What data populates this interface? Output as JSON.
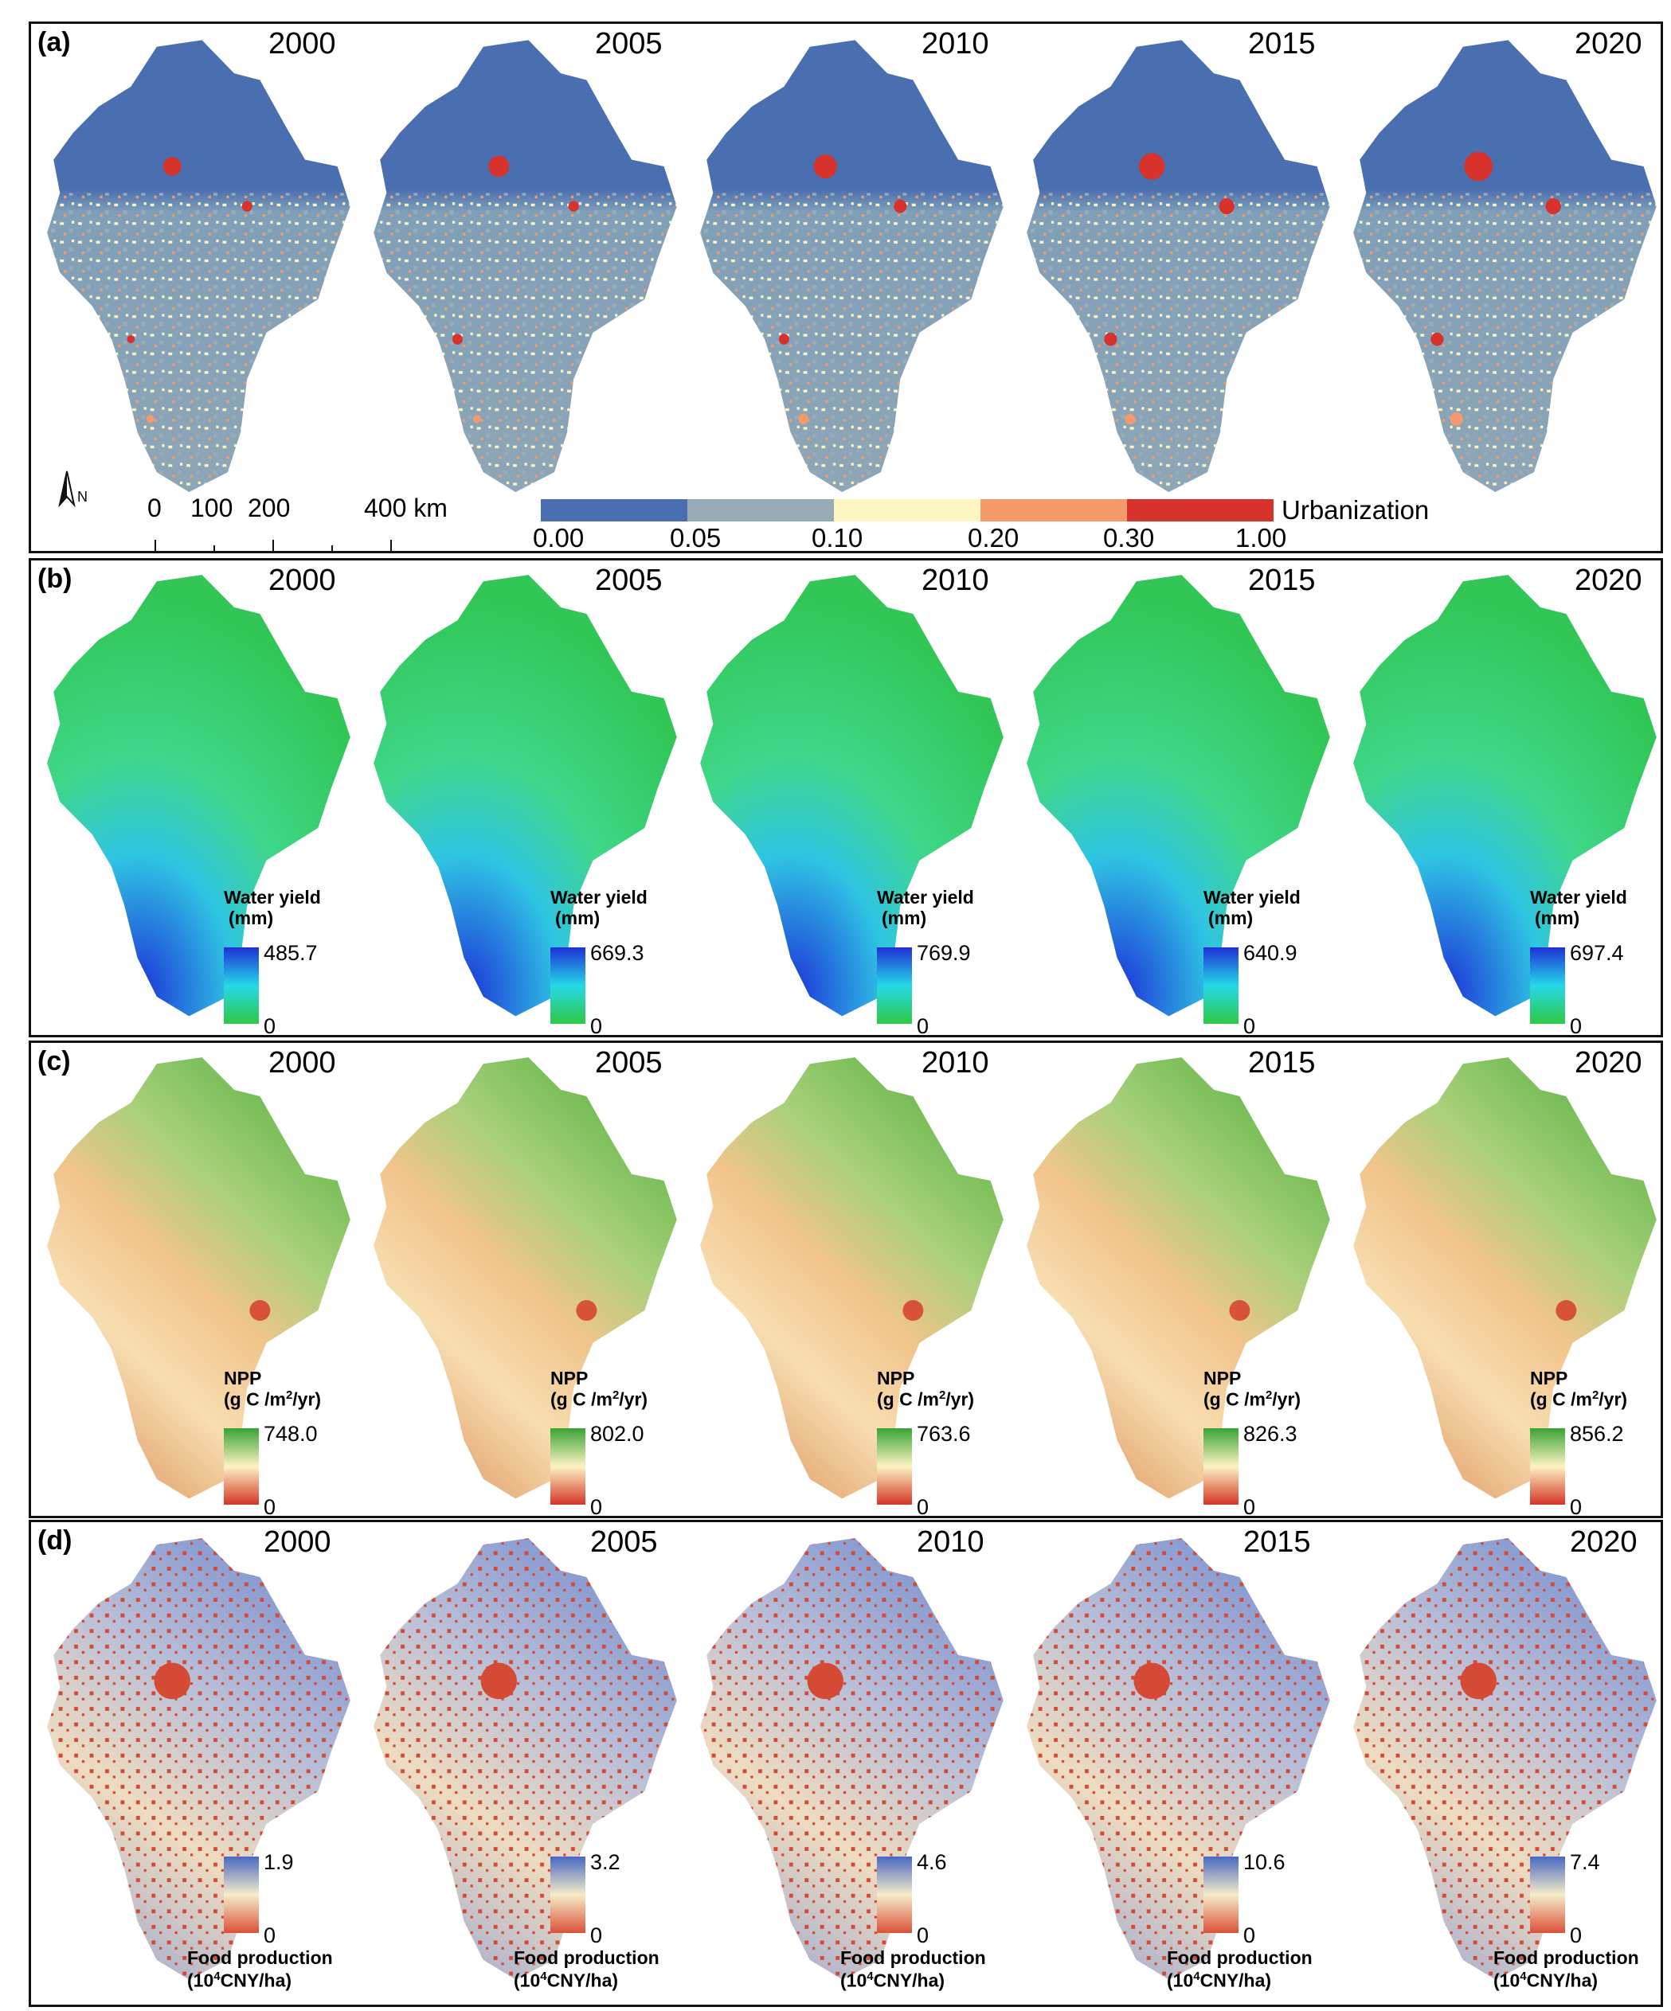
{
  "years": [
    "2000",
    "2005",
    "2010",
    "2015",
    "2020"
  ],
  "panels": {
    "a": {
      "label": "(a)",
      "legend_title": "Urbanization",
      "breaks": [
        "0.00",
        "0.05",
        "0.10",
        "0.20",
        "0.30",
        "1.00"
      ],
      "class_colors": [
        "#4a6fb0",
        "#9aabb8",
        "#fdf6c3",
        "#f59a6b",
        "#d7322b"
      ],
      "north_label": "N",
      "scale_labels": [
        "0",
        "100",
        "200",
        "400 km"
      ]
    },
    "b": {
      "label": "(b)",
      "legend_title_1": "Water yield",
      "legend_title_2": "(mm)",
      "max_values": [
        "485.7",
        "669.3",
        "769.9",
        "640.9",
        "697.4"
      ],
      "min_value": "0",
      "ramp_colors": [
        "#1f2fd6",
        "#25d8e8",
        "#2ec944"
      ]
    },
    "c": {
      "label": "(c)",
      "legend_title_1": "NPP",
      "legend_title_2_pre": "(g C /m",
      "legend_title_2_sup": "2",
      "legend_title_2_post": "/yr)",
      "max_values": [
        "748.0",
        "802.0",
        "763.6",
        "826.3",
        "856.2"
      ],
      "min_value": "0",
      "ramp_colors": [
        "#39a334",
        "#fcf3c2",
        "#d63427"
      ]
    },
    "d": {
      "label": "(d)",
      "legend_title_1": "Food production",
      "legend_title_2_pre": "(10",
      "legend_title_2_sup": "4",
      "legend_title_2_post": "CNY/ha)",
      "max_values": [
        "1.9",
        "3.2",
        "4.6",
        "10.6",
        "7.4"
      ],
      "min_value": "0",
      "ramp_colors": [
        "#4868c4",
        "#f5ecc8",
        "#db5039"
      ]
    }
  }
}
